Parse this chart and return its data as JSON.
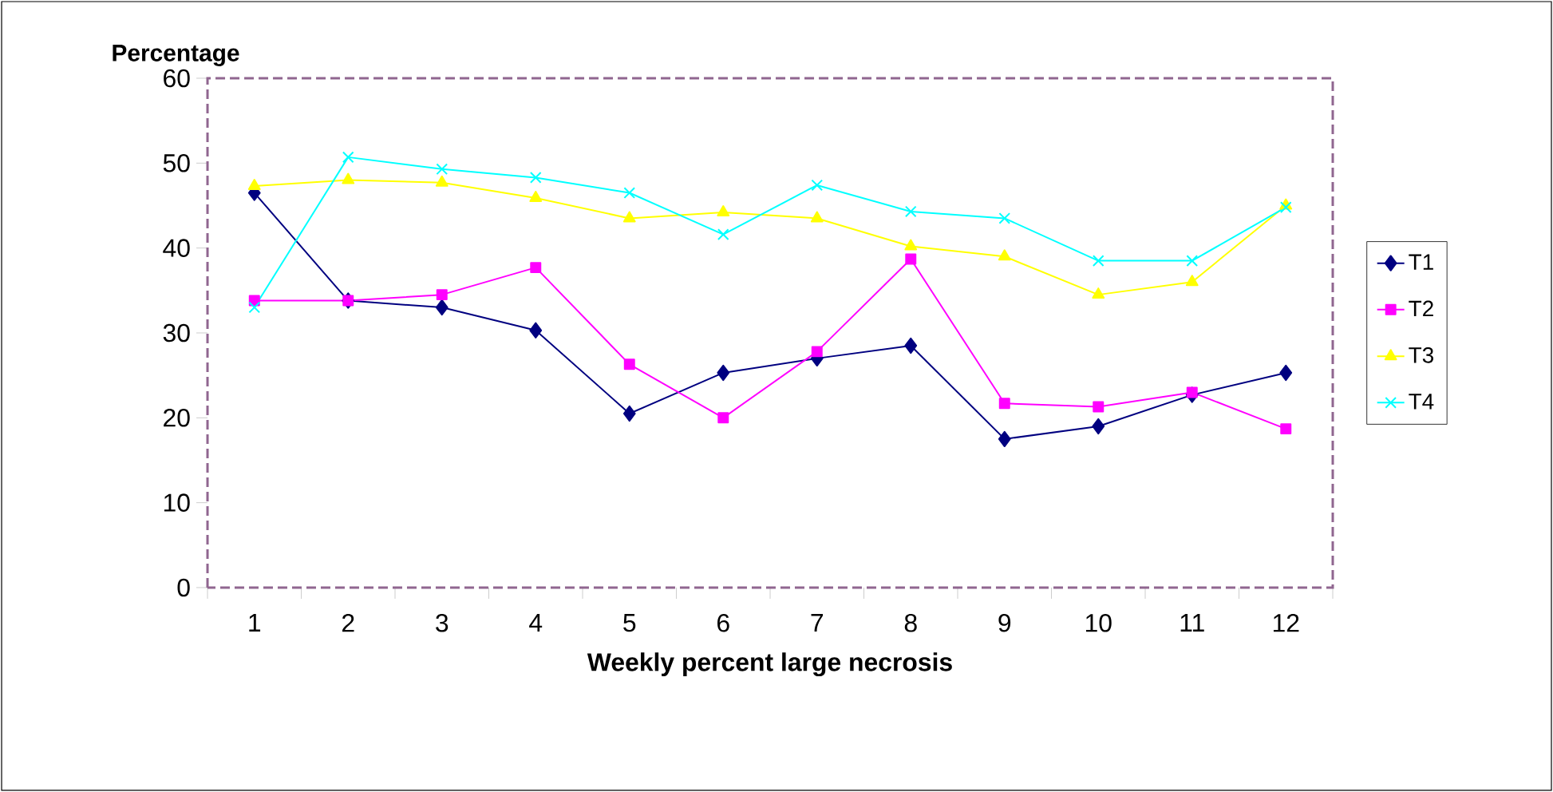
{
  "chart_data": {
    "type": "line",
    "xlabel": "Weekly percent large necrosis",
    "ylabel": "Percentage",
    "categories": [
      "1",
      "2",
      "3",
      "4",
      "5",
      "6",
      "7",
      "8",
      "9",
      "10",
      "11",
      "12"
    ],
    "ylim": [
      0,
      60
    ],
    "yticks": [
      0,
      10,
      20,
      30,
      40,
      50,
      60
    ],
    "grid": false,
    "legend": "right",
    "line_style": "solid",
    "series": [
      {
        "name": "T1",
        "color": "#000080",
        "marker": "diamond",
        "values": [
          46.5,
          33.8,
          33,
          30.3,
          20.5,
          25.3,
          27,
          28.5,
          17.5,
          19,
          22.7,
          25.3
        ]
      },
      {
        "name": "T2",
        "color": "#ff00ff",
        "marker": "square",
        "values": [
          33.8,
          33.8,
          34.5,
          37.7,
          26.3,
          20,
          27.8,
          38.7,
          21.7,
          21.3,
          23,
          18.7
        ]
      },
      {
        "name": "T3",
        "color": "#ffff00",
        "marker": "triangle",
        "values": [
          47.3,
          48,
          47.7,
          45.9,
          43.5,
          44.2,
          43.5,
          40.2,
          39,
          34.5,
          36,
          45
        ]
      },
      {
        "name": "T4",
        "color": "#00ffff",
        "marker": "cross",
        "values": [
          33,
          50.7,
          49.3,
          48.3,
          46.5,
          41.6,
          47.4,
          44.3,
          43.5,
          38.5,
          38.5,
          44.8
        ]
      }
    ]
  }
}
